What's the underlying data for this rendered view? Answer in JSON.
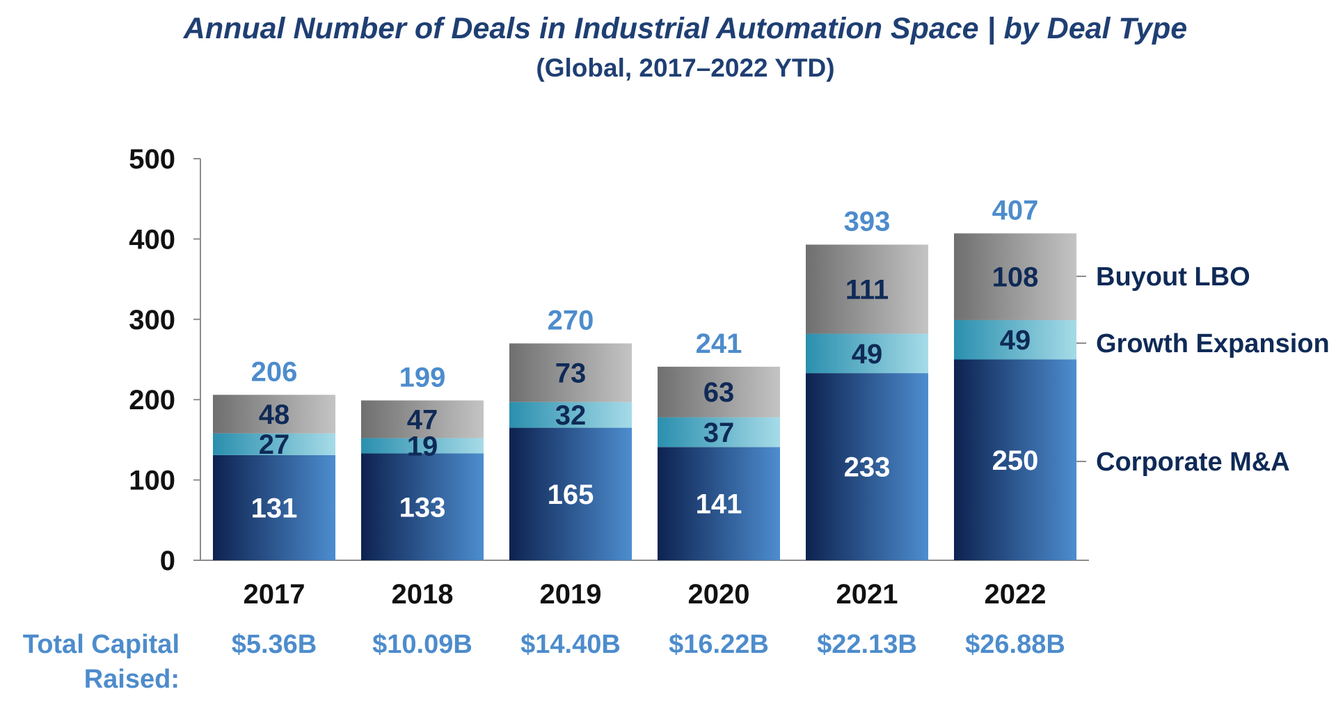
{
  "colors": {
    "corporate_dark": "#0d2250",
    "corporate_light": "#4d8dcf",
    "growth_dark": "#2a8fae",
    "growth_light": "#a6dbe8",
    "buyout_dark": "#6f6f6f",
    "buyout_light": "#c4c4c4",
    "title": "#1f3f73",
    "total": "#4d8ccc",
    "label_dark": "#0f2a57"
  },
  "chart_data": {
    "type": "bar",
    "stacked": true,
    "title": "Annual Number of Deals in Industrial Automation Space | by Deal Type",
    "subtitle": "(Global, 2017–2022 YTD)",
    "categories": [
      "2017",
      "2018",
      "2019",
      "2020",
      "2021",
      "2022"
    ],
    "series": [
      {
        "name": "Corporate M&A",
        "values": [
          131,
          133,
          165,
          141,
          233,
          250
        ]
      },
      {
        "name": "Growth Expansion",
        "values": [
          27,
          19,
          32,
          37,
          49,
          49
        ]
      },
      {
        "name": "Buyout LBO",
        "values": [
          48,
          47,
          73,
          63,
          111,
          108
        ]
      }
    ],
    "totals": [
      206,
      199,
      270,
      241,
      393,
      407
    ],
    "yticks": [
      0,
      100,
      200,
      300,
      400,
      500
    ],
    "ylim": [
      0,
      500
    ],
    "legend_position": "right",
    "capital_label": "Total Capital Raised:",
    "capital_label_lines": [
      "Total Capital",
      "Raised:"
    ],
    "capital_raised": [
      "$5.36B",
      "$10.09B",
      "$14.40B",
      "$16.22B",
      "$22.13B",
      "$26.88B"
    ]
  }
}
